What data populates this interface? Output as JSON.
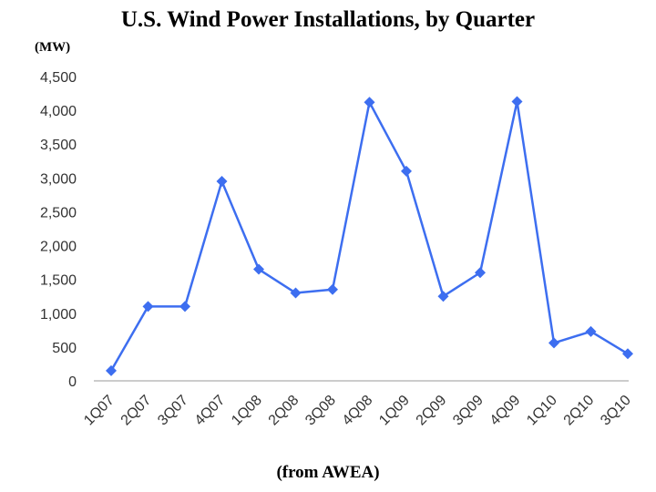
{
  "title": "U.S. Wind Power Installations, by Quarter",
  "unit_label": "(MW)",
  "source": "(from AWEA)",
  "colors": {
    "series": "#3d6ef0",
    "axis": "#999999",
    "text": "#333333"
  },
  "chart_data": {
    "type": "line",
    "title": "U.S. Wind Power Installations, by Quarter",
    "ylabel": "(MW)",
    "xlabel": "",
    "ylim": [
      0,
      4500
    ],
    "yticks": [
      0,
      500,
      1000,
      1500,
      2000,
      2500,
      3000,
      3500,
      4000,
      4500
    ],
    "ytick_labels": [
      "0",
      "500",
      "1,000",
      "1,500",
      "2,000",
      "2,500",
      "3,000",
      "3,500",
      "4,000",
      "4,500"
    ],
    "grid": false,
    "marker": "diamond",
    "categories": [
      "1Q07",
      "2Q07",
      "3Q07",
      "4Q07",
      "1Q08",
      "2Q08",
      "3Q08",
      "4Q08",
      "1Q09",
      "2Q09",
      "3Q09",
      "4Q09",
      "1Q10",
      "2Q10",
      "3Q10"
    ],
    "series": [
      {
        "values": [
          150,
          1100,
          1100,
          2950,
          1650,
          1300,
          1350,
          4120,
          3100,
          1250,
          1600,
          4130,
          560,
          730,
          400
        ]
      }
    ]
  }
}
